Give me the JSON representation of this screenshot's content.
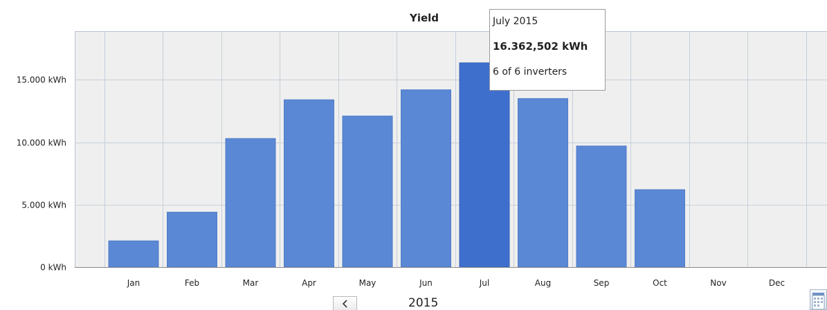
{
  "chart_data": {
    "type": "bar",
    "title": "Yield",
    "categories": [
      "Jan",
      "Feb",
      "Mar",
      "Apr",
      "May",
      "Jun",
      "Jul",
      "Aug",
      "Sep",
      "Oct",
      "Nov",
      "Dec"
    ],
    "values": [
      2100,
      4400,
      10300,
      13400,
      12100,
      14200,
      16362.502,
      13500,
      9700,
      6200,
      null,
      null
    ],
    "highlighted_category": "Jul",
    "ylim": [
      0,
      18900
    ],
    "yticks": [
      {
        "value": 0,
        "label": "0 kWh"
      },
      {
        "value": 5000,
        "label": "5.000 kWh"
      },
      {
        "value": 10000,
        "label": "10.000 kWh"
      },
      {
        "value": 15000,
        "label": "15.000 kWh"
      }
    ],
    "grid": true,
    "colors": {
      "bar": "#5b88d4",
      "bar_highlight": "#3f6fcc",
      "plot_background": "#efefef",
      "grid": "#c6cfdb"
    }
  },
  "tooltip": {
    "period": "July 2015",
    "value": "16.362,502 kWh",
    "inverters": "6 of 6 inverters"
  },
  "navigation": {
    "year": "2015",
    "prev_icon": "chevron-left-icon",
    "calendar_icon": "calendar-icon"
  }
}
